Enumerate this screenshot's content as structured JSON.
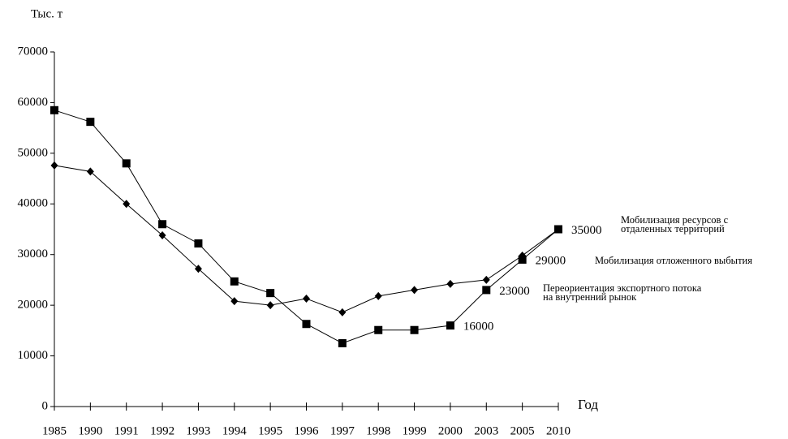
{
  "chart_data": {
    "type": "line",
    "y_label": "Тыс. т",
    "x_label": "Год",
    "categories": [
      "1985",
      "1990",
      "1991",
      "1992",
      "1993",
      "1994",
      "1995",
      "1996",
      "1997",
      "1998",
      "1999",
      "2000",
      "2003",
      "2005",
      "2010"
    ],
    "series": [
      {
        "color": "#000000",
        "marker": "square",
        "values": [
          58500,
          56200,
          48000,
          36000,
          32200,
          24700,
          22400,
          16300,
          12500,
          15100,
          15100,
          16000,
          23000,
          29000,
          35000
        ],
        "value_labels": [
          null,
          null,
          null,
          null,
          null,
          null,
          null,
          null,
          null,
          null,
          null,
          "16000",
          "23000",
          "29000",
          "35000"
        ]
      },
      {
        "color": "#000000",
        "marker": "diamond",
        "values": [
          47600,
          46400,
          40000,
          33800,
          27200,
          20800,
          20000,
          21300,
          18600,
          21800,
          23000,
          24200,
          25000,
          29800,
          35000
        ]
      }
    ],
    "notes": [
      [
        "Мобилизация ресурсов с",
        "отдаленных территорий"
      ],
      [
        "Мобилизация отложенного выбытия"
      ],
      [
        "Переориентация экспортного потока",
        "на внутренний рынок"
      ]
    ],
    "ylim": [
      0,
      70000
    ],
    "yticks": [
      0,
      10000,
      20000,
      30000,
      40000,
      50000,
      60000,
      70000
    ],
    "grid": false
  }
}
